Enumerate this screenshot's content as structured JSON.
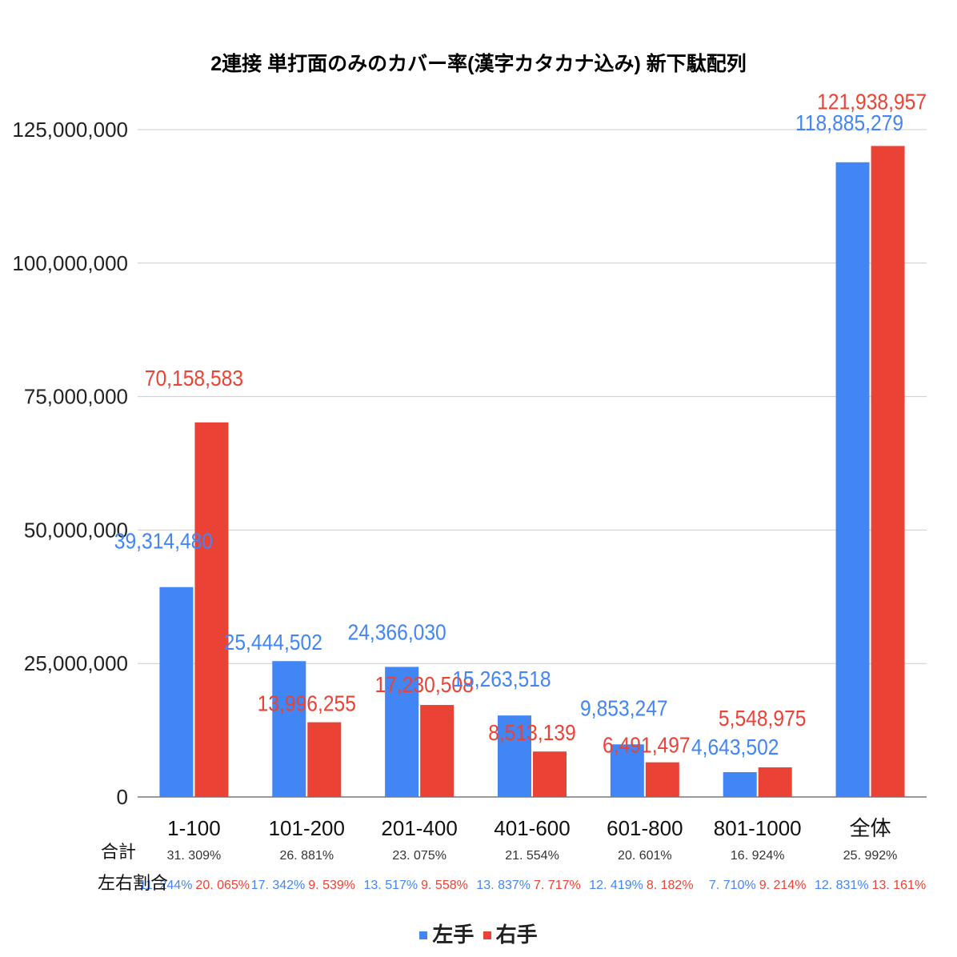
{
  "chart_data": {
    "type": "bar",
    "title": "2連接 単打面のみのカバー率(漢字カタカナ込み) 新下駄配列",
    "categories": [
      "1-100",
      "101-200",
      "201-400",
      "401-600",
      "601-800",
      "801-1000",
      "全体"
    ],
    "series": [
      {
        "name": "左手",
        "color": "#4285f4",
        "values": [
          39314480,
          25444502,
          24366030,
          15263518,
          9853247,
          4643502,
          118885279
        ],
        "labels": [
          "39,314,480",
          "25,444,502",
          "24,366,030",
          "15,263,518",
          "9,853,247",
          "4,643,502",
          "118,885,279"
        ]
      },
      {
        "name": "右手",
        "color": "#ea4335",
        "values": [
          70158583,
          13996255,
          17230508,
          8513139,
          6491497,
          5548975,
          121938957
        ],
        "labels": [
          "70,158,583",
          "13,996,255",
          "17,230,508",
          "8,513,139",
          "6,491,497",
          "5,548,975",
          "121,938,957"
        ]
      }
    ],
    "ylim": [
      0,
      125000000
    ],
    "yticks": [
      0,
      25000000,
      50000000,
      75000000,
      100000000,
      125000000
    ],
    "ytick_labels": [
      "0",
      "25,000,000",
      "50,000,000",
      "75,000,000",
      "100,000,000",
      "125,000,000"
    ],
    "grid": true,
    "legend_position": "bottom",
    "row_labels": {
      "total": "合計",
      "ratio": "左右割合"
    },
    "totals": [
      "31. 309%",
      "26. 881%",
      "23. 075%",
      "21. 554%",
      "20. 601%",
      "16. 924%",
      "25. 992%"
    ],
    "ratios_left": [
      "11. 244%",
      "17. 342%",
      "13. 517%",
      "13. 837%",
      "12. 419%",
      "7. 710%",
      "12. 831%"
    ],
    "ratios_right": [
      "20. 065%",
      "9. 539%",
      "9. 558%",
      "7. 717%",
      "8. 182%",
      "9. 214%",
      "13. 161%"
    ]
  }
}
